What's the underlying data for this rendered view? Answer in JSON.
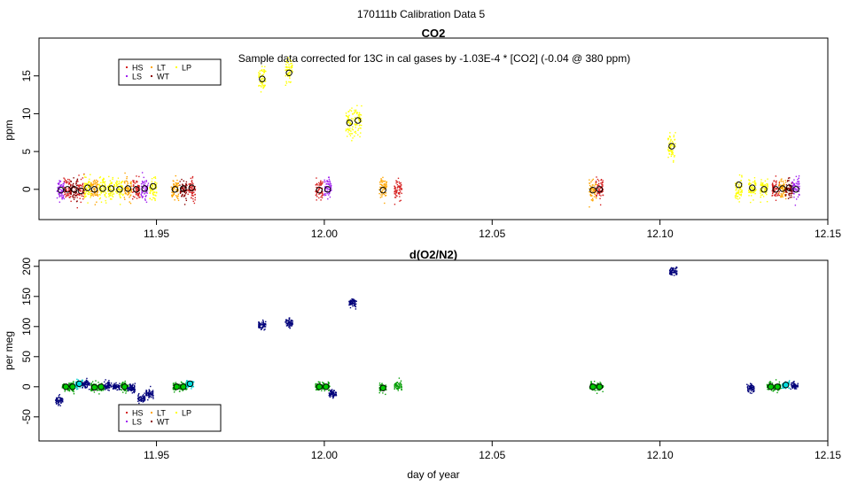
{
  "figure": {
    "title": "170111b   Calibration Data 5",
    "xlabel": "day of year"
  },
  "colors": {
    "HS": "#d62020",
    "LS": "#a020f0",
    "LT": "#ffa500",
    "WT": "#8b0000",
    "LP": "#ffff00",
    "o2_points": "#00007a",
    "o2_LS": "#0aa00a",
    "o2_HS": "#00cccc",
    "marker_fill_co2": "none",
    "marker_fill_green": "#00cc00",
    "marker_fill_cyan": "#00dddd"
  },
  "chart_data": [
    {
      "type": "scatter",
      "title": "CO2",
      "annotation": "Sample data corrected for 13C in cal gases by -1.03E-4 * [CO2] (-0.04 @ 380 ppm)",
      "xlabel": "",
      "ylabel": "ppm",
      "xlim": [
        11.915,
        12.15
      ],
      "ylim": [
        -4,
        20
      ],
      "xticks": [
        11.95,
        12.0,
        12.05,
        12.1,
        12.15
      ],
      "xtick_labels": [
        "11.95",
        "12.00",
        "12.05",
        "12.10",
        "12.15"
      ],
      "yticks": [
        0,
        5,
        10,
        15
      ],
      "ytick_labels": [
        "0",
        "5",
        "10",
        "15"
      ],
      "legend": {
        "position": "top-left",
        "entries": [
          {
            "label": "HS",
            "color_key": "HS"
          },
          {
            "label": "LS",
            "color_key": "LS"
          },
          {
            "label": "LT",
            "color_key": "LT"
          },
          {
            "label": "WT",
            "color_key": "WT"
          },
          {
            "label": "LP",
            "color_key": "LP"
          }
        ]
      },
      "clusters": [
        {
          "x": 11.9215,
          "y": 0.0,
          "color_key": "LS",
          "mean": -0.1
        },
        {
          "x": 11.9235,
          "y": 0.0,
          "color_key": "HS",
          "mean": 0.0
        },
        {
          "x": 11.9255,
          "y": 0.0,
          "color_key": "WT",
          "mean": 0.0
        },
        {
          "x": 11.9275,
          "y": 0.0,
          "color_key": "HS",
          "mean": -0.2
        },
        {
          "x": 11.9295,
          "y": 0.0,
          "color_key": "LP",
          "mean": 0.2
        },
        {
          "x": 11.9315,
          "y": 0.0,
          "color_key": "LT",
          "mean": 0.0
        },
        {
          "x": 11.934,
          "y": 0.0,
          "color_key": "LP",
          "mean": 0.1
        },
        {
          "x": 11.9365,
          "y": 0.0,
          "color_key": "LP",
          "mean": 0.1
        },
        {
          "x": 11.939,
          "y": 0.0,
          "color_key": "LP",
          "mean": 0.0
        },
        {
          "x": 11.9415,
          "y": 0.0,
          "color_key": "LT",
          "mean": 0.1
        },
        {
          "x": 11.944,
          "y": 0.0,
          "color_key": "HS",
          "mean": 0.0
        },
        {
          "x": 11.9465,
          "y": 0.0,
          "color_key": "LS",
          "mean": 0.1
        },
        {
          "x": 11.949,
          "y": 0.0,
          "color_key": "LP",
          "mean": 0.4
        },
        {
          "x": 11.9555,
          "y": 0.0,
          "color_key": "LT",
          "mean": 0.0
        },
        {
          "x": 11.958,
          "y": 0.0,
          "color_key": "WT",
          "mean": 0.1
        },
        {
          "x": 11.9605,
          "y": 0.0,
          "color_key": "HS",
          "mean": 0.2
        },
        {
          "x": 11.9815,
          "y": 14.6,
          "color_key": "LP",
          "mean": 14.6
        },
        {
          "x": 11.9895,
          "y": 15.4,
          "color_key": "LP",
          "mean": 15.4
        },
        {
          "x": 11.9985,
          "y": 0.0,
          "color_key": "HS",
          "mean": -0.1
        },
        {
          "x": 12.001,
          "y": 0.0,
          "color_key": "LS",
          "mean": 0.0
        },
        {
          "x": 12.0075,
          "y": 8.8,
          "color_key": "LP",
          "mean": 8.8
        },
        {
          "x": 12.01,
          "y": 9.1,
          "color_key": "LP",
          "mean": 9.1
        },
        {
          "x": 12.0175,
          "y": 0.0,
          "color_key": "LT",
          "mean": -0.1
        },
        {
          "x": 12.022,
          "y": 0.0,
          "color_key": "HS",
          "mean": null
        },
        {
          "x": 12.08,
          "y": 0.0,
          "color_key": "LT",
          "mean": -0.1
        },
        {
          "x": 12.082,
          "y": 0.0,
          "color_key": "HS",
          "mean": 0.0
        },
        {
          "x": 12.1035,
          "y": 5.7,
          "color_key": "LP",
          "mean": 5.7
        },
        {
          "x": 12.1235,
          "y": 0.0,
          "color_key": "LP",
          "mean": 0.6
        },
        {
          "x": 12.1275,
          "y": 0.0,
          "color_key": "LP",
          "mean": 0.2
        },
        {
          "x": 12.131,
          "y": 0.0,
          "color_key": "LP",
          "mean": 0.0
        },
        {
          "x": 12.1345,
          "y": 0.0,
          "color_key": "HS",
          "mean": 0.0
        },
        {
          "x": 12.1365,
          "y": 0.0,
          "color_key": "LT",
          "mean": 0.1
        },
        {
          "x": 12.1385,
          "y": 0.0,
          "color_key": "WT",
          "mean": 0.2
        },
        {
          "x": 12.1405,
          "y": 0.0,
          "color_key": "LS",
          "mean": 0.0
        }
      ]
    },
    {
      "type": "scatter",
      "title": "d(O2/N2)",
      "xlabel": "day of year",
      "ylabel": "per meg",
      "xlim": [
        11.915,
        12.15
      ],
      "ylim": [
        -90,
        210
      ],
      "xticks": [
        11.95,
        12.0,
        12.05,
        12.1,
        12.15
      ],
      "xtick_labels": [
        "11.95",
        "12.00",
        "12.05",
        "12.10",
        "12.15"
      ],
      "yticks": [
        -50,
        0,
        50,
        100,
        150,
        200
      ],
      "ytick_labels": [
        "-50",
        "0",
        "50",
        "100",
        "150",
        "200"
      ],
      "legend": {
        "position": "bottom-left",
        "entries": [
          {
            "label": "HS",
            "color_key": "HS"
          },
          {
            "label": "LS",
            "color_key": "LS"
          },
          {
            "label": "LT",
            "color_key": "LT"
          },
          {
            "label": "WT",
            "color_key": "WT"
          },
          {
            "label": "LP",
            "color_key": "LP"
          }
        ]
      },
      "clusters": [
        {
          "x": 11.921,
          "y": -24,
          "color_key": "o2_points",
          "mean": null
        },
        {
          "x": 11.923,
          "y": 0,
          "color_key": "o2_LS",
          "mean": 0
        },
        {
          "x": 11.925,
          "y": 0,
          "color_key": "o2_LS",
          "mean": 0
        },
        {
          "x": 11.927,
          "y": 5,
          "color_key": "o2_HS",
          "mean": 5
        },
        {
          "x": 11.929,
          "y": 5,
          "color_key": "o2_points",
          "mean": null
        },
        {
          "x": 11.9315,
          "y": 0,
          "color_key": "o2_LS",
          "mean": -1
        },
        {
          "x": 11.9335,
          "y": 0,
          "color_key": "o2_LS",
          "mean": 0
        },
        {
          "x": 11.9355,
          "y": 2,
          "color_key": "o2_points",
          "mean": null
        },
        {
          "x": 11.938,
          "y": 0,
          "color_key": "o2_points",
          "mean": null
        },
        {
          "x": 11.9405,
          "y": 0,
          "color_key": "o2_LS",
          "mean": 0
        },
        {
          "x": 11.9425,
          "y": -2,
          "color_key": "o2_points",
          "mean": null
        },
        {
          "x": 11.9455,
          "y": -20,
          "color_key": "o2_points",
          "mean": null
        },
        {
          "x": 11.948,
          "y": -12,
          "color_key": "o2_points",
          "mean": null
        },
        {
          "x": 11.956,
          "y": 0,
          "color_key": "o2_LS",
          "mean": 0
        },
        {
          "x": 11.958,
          "y": 0,
          "color_key": "o2_LS",
          "mean": 0
        },
        {
          "x": 11.96,
          "y": 5,
          "color_key": "o2_HS",
          "mean": 5
        },
        {
          "x": 11.9815,
          "y": 102,
          "color_key": "o2_points",
          "mean": null
        },
        {
          "x": 11.9895,
          "y": 106,
          "color_key": "o2_points",
          "mean": null
        },
        {
          "x": 11.9985,
          "y": 0,
          "color_key": "o2_LS",
          "mean": 0
        },
        {
          "x": 12.0005,
          "y": 0,
          "color_key": "o2_LS",
          "mean": 0
        },
        {
          "x": 12.0025,
          "y": -12,
          "color_key": "o2_points",
          "mean": null
        },
        {
          "x": 12.0085,
          "y": 140,
          "color_key": "o2_points",
          "mean": null
        },
        {
          "x": 12.0175,
          "y": -2,
          "color_key": "o2_LS",
          "mean": -2
        },
        {
          "x": 12.022,
          "y": 1,
          "color_key": "o2_LS",
          "mean": null
        },
        {
          "x": 12.08,
          "y": 0,
          "color_key": "o2_LS",
          "mean": 0
        },
        {
          "x": 12.082,
          "y": 0,
          "color_key": "o2_LS",
          "mean": 0
        },
        {
          "x": 12.104,
          "y": 192,
          "color_key": "o2_points",
          "mean": null
        },
        {
          "x": 12.127,
          "y": -2,
          "color_key": "o2_points",
          "mean": null
        },
        {
          "x": 12.133,
          "y": 0,
          "color_key": "o2_LS",
          "mean": 0
        },
        {
          "x": 12.135,
          "y": 0,
          "color_key": "o2_LS",
          "mean": 0
        },
        {
          "x": 12.1375,
          "y": 3,
          "color_key": "o2_HS",
          "mean": 3
        },
        {
          "x": 12.14,
          "y": 1,
          "color_key": "o2_points",
          "mean": null
        }
      ]
    }
  ]
}
